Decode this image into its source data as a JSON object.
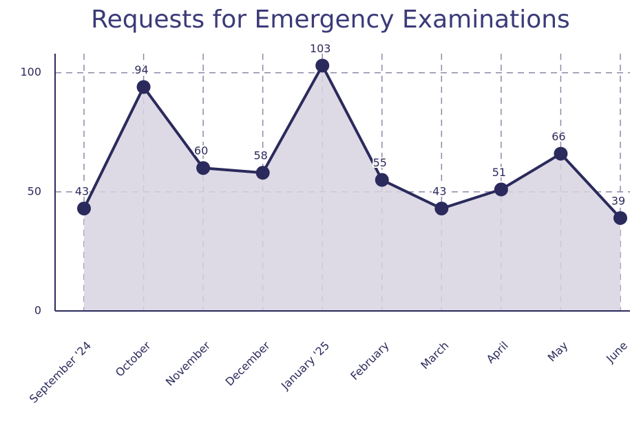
{
  "chart_data": {
    "type": "area",
    "title": "Requests for Emergency Examinations",
    "categories": [
      "September '24",
      "October",
      "November",
      "December",
      "January '25",
      "February",
      "March",
      "April",
      "May",
      "June"
    ],
    "values": [
      43,
      94,
      60,
      58,
      103,
      55,
      43,
      51,
      66,
      39
    ],
    "color": "#2b2a5c",
    "fill_color": "#d7d4e1",
    "ylim": [
      0,
      108
    ],
    "yticks": [
      0,
      50,
      100
    ],
    "grid": true
  }
}
